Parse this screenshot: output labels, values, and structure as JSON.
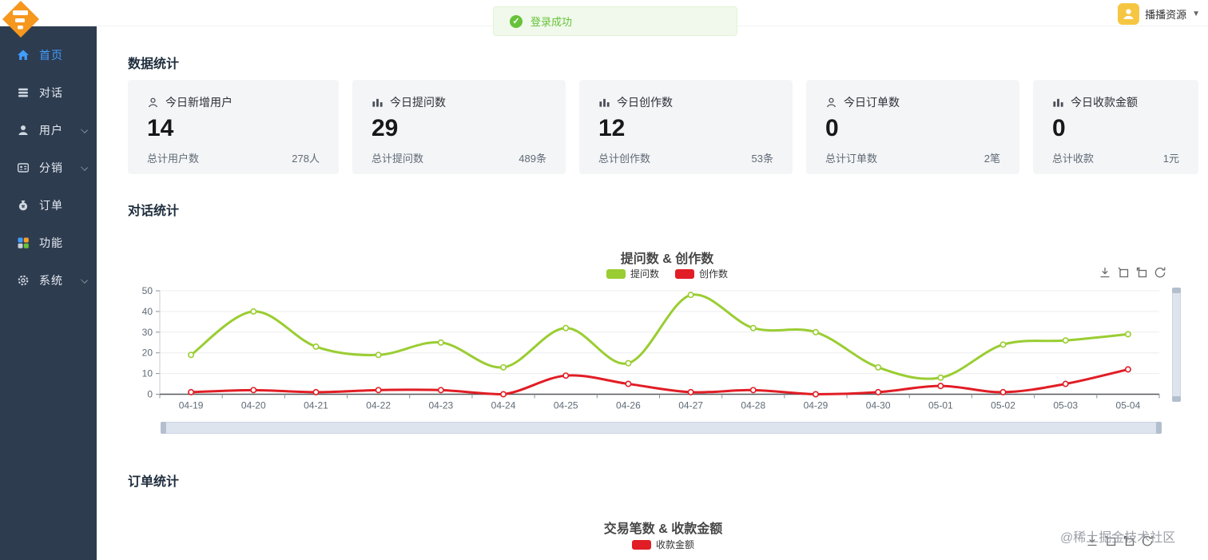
{
  "header": {
    "toast": {
      "text": "登录成功"
    },
    "user": {
      "name": "播播资源"
    }
  },
  "icons": {
    "caret": "▼",
    "check": "✓"
  },
  "sidebar": {
    "items": [
      {
        "label": "首页",
        "icon": "home-icon",
        "active": true,
        "chevron": false
      },
      {
        "label": "对话",
        "icon": "chat-icon",
        "active": false,
        "chevron": false
      },
      {
        "label": "用户",
        "icon": "user-icon",
        "active": false,
        "chevron": true
      },
      {
        "label": "分销",
        "icon": "badge-icon",
        "active": false,
        "chevron": true
      },
      {
        "label": "订单",
        "icon": "money-bag-icon",
        "active": false,
        "chevron": false
      },
      {
        "label": "功能",
        "icon": "features-grid-icon",
        "active": false,
        "chevron": false
      },
      {
        "label": "系统",
        "icon": "gear-icon",
        "active": false,
        "chevron": true
      }
    ]
  },
  "sections": {
    "stats_title": "数据统计",
    "dialog_title": "对话统计",
    "order_title": "订单统计"
  },
  "stat_cards": [
    {
      "icon": "user-icon",
      "title": "今日新增用户",
      "value": "14",
      "footer_label": "总计用户数",
      "footer_value": "278人"
    },
    {
      "icon": "histogram-icon",
      "title": "今日提问数",
      "value": "29",
      "footer_label": "总计提问数",
      "footer_value": "489条"
    },
    {
      "icon": "histogram-icon",
      "title": "今日创作数",
      "value": "12",
      "footer_label": "总计创作数",
      "footer_value": "53条"
    },
    {
      "icon": "user-icon",
      "title": "今日订单数",
      "value": "0",
      "footer_label": "总计订单数",
      "footer_value": "2笔"
    },
    {
      "icon": "histogram-icon",
      "title": "今日收款金额",
      "value": "0",
      "footer_label": "总计收款",
      "footer_value": "1元"
    }
  ],
  "chart_data": [
    {
      "type": "line",
      "title": "提问数 & 创作数",
      "x": [
        "04-19",
        "04-20",
        "04-21",
        "04-22",
        "04-23",
        "04-24",
        "04-25",
        "04-26",
        "04-27",
        "04-28",
        "04-29",
        "04-30",
        "05-01",
        "05-02",
        "05-03",
        "05-04"
      ],
      "series": [
        {
          "name": "提问数",
          "color": "#9acd32",
          "values": [
            19,
            40,
            23,
            19,
            25,
            13,
            32,
            15,
            48,
            32,
            30,
            13,
            8,
            24,
            26,
            29
          ]
        },
        {
          "name": "创作数",
          "color": "#e11d25",
          "values": [
            1,
            2,
            1,
            2,
            2,
            0,
            9,
            5,
            1,
            2,
            0,
            1,
            4,
            1,
            5,
            12
          ]
        }
      ],
      "ylim": [
        0,
        50
      ],
      "yticks": [
        0,
        10,
        20,
        30,
        40,
        50
      ],
      "grid": true,
      "smooth": true,
      "legend_position": "top",
      "has_data_zoom_sliders": true
    },
    {
      "type": "line",
      "title": "交易笔数 & 收款金额",
      "series": [
        {
          "name": "收款金额",
          "color": "#e11d25",
          "values": []
        }
      ],
      "note_visible_portion": "title and legend only (chart cut off at viewport bottom)"
    }
  ],
  "watermark": "@稀土掘金技术社区",
  "colors": {
    "sidebar_bg": "#2e3c50",
    "active_menu": "#409eff",
    "toast_bg": "#f0f9eb",
    "toast_text": "#67c23a",
    "avatar_bg": "#f6c643",
    "logo_orange": "#f6971e",
    "card_bg": "#f4f5f7",
    "series_green": "#9acd32",
    "series_red": "#e11d25",
    "slider_bg": "#dde4ee"
  }
}
